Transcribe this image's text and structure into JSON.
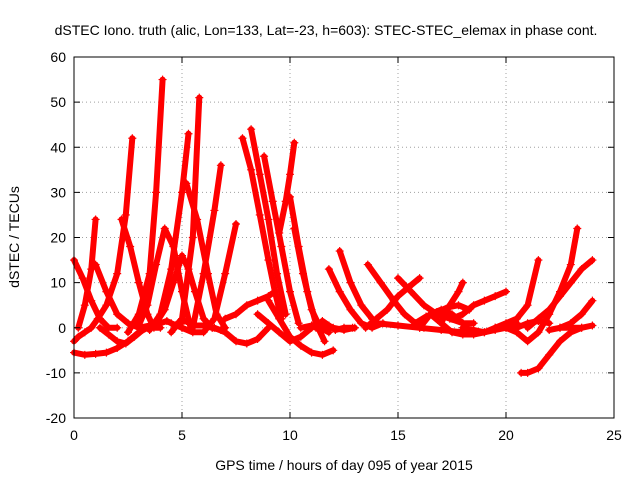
{
  "chart_data": {
    "type": "scatter",
    "title": "dSTEC Iono. truth (alic, Lon=133, Lat=-23, h=603): STEC-STEC_elemax in phase cont.",
    "xlabel": "GPS time / hours of day 095 of year 2015",
    "ylabel": "dSTEC  / TECUs",
    "xlim": [
      0,
      25
    ],
    "ylim": [
      -20,
      60
    ],
    "x_ticks": [
      0,
      5,
      10,
      15,
      20,
      25
    ],
    "y_ticks": [
      -20,
      -10,
      0,
      10,
      20,
      30,
      40,
      50,
      60
    ],
    "x_tick_labels": [
      "0",
      "5",
      "10",
      "15",
      "20",
      "25"
    ],
    "y_tick_labels": [
      "-20",
      "-10",
      "0",
      "10",
      "20",
      "30",
      "40",
      "50",
      "60"
    ],
    "grid": true,
    "marker": "+",
    "series_color": "#ff0000",
    "series": [
      {
        "x": [
          0.0,
          0.2,
          0.5,
          0.8,
          1.1,
          1.5,
          2.0,
          2.4,
          2.7
        ],
        "y": [
          -3,
          -2,
          -1,
          0,
          2,
          5,
          12,
          25,
          42
        ]
      },
      {
        "x": [
          0.0,
          0.4,
          0.8,
          1.2,
          1.6,
          2.0
        ],
        "y": [
          15,
          11,
          6,
          2,
          0,
          0
        ]
      },
      {
        "x": [
          0.0,
          0.5,
          1.0,
          1.5,
          2.0,
          2.5,
          3.0,
          3.4
        ],
        "y": [
          -5.5,
          -6,
          -5.8,
          -5.5,
          -4.5,
          -3,
          -1,
          0
        ]
      },
      {
        "x": [
          0.2,
          0.5,
          0.8,
          1.0
        ],
        "y": [
          0,
          5,
          13,
          24
        ]
      },
      {
        "x": [
          1.0,
          1.5,
          2.0,
          2.5,
          3.0,
          3.5,
          4.0,
          4.3,
          4.5,
          5.0
        ],
        "y": [
          14,
          8,
          3,
          1,
          0,
          0.5,
          1,
          1.5,
          1,
          0
        ]
      },
      {
        "x": [
          1.2,
          1.6,
          2.0,
          2.4,
          2.8,
          3.3,
          4.0
        ],
        "y": [
          0,
          -1.5,
          -3,
          -3.5,
          -2,
          0,
          1
        ]
      },
      {
        "x": [
          2.2,
          2.6,
          3.0,
          3.4,
          3.7,
          4.0
        ],
        "y": [
          24,
          18,
          10,
          3,
          0,
          0
        ]
      },
      {
        "x": [
          2.5,
          3.0,
          3.5,
          3.8,
          4.1
        ],
        "y": [
          -1,
          3,
          12,
          30,
          55
        ]
      },
      {
        "x": [
          3.0,
          3.4,
          3.8,
          4.2,
          4.6,
          5.0,
          5.4
        ],
        "y": [
          0.5,
          5,
          14,
          22,
          18,
          8,
          0
        ]
      },
      {
        "x": [
          3.5,
          4.0,
          4.5,
          5.0,
          5.3
        ],
        "y": [
          -0.5,
          3,
          13,
          30,
          43
        ]
      },
      {
        "x": [
          3.8,
          4.2,
          4.6,
          5.0,
          5.3,
          5.6,
          6.0,
          6.4
        ],
        "y": [
          1,
          4,
          10,
          16,
          13,
          8,
          2,
          0
        ]
      },
      {
        "x": [
          4.5,
          5.0,
          5.5,
          5.8
        ],
        "y": [
          -1,
          2,
          20,
          51
        ]
      },
      {
        "x": [
          5.2,
          5.7,
          6.2,
          6.6,
          7.0
        ],
        "y": [
          32,
          24,
          12,
          3,
          0
        ]
      },
      {
        "x": [
          5.5,
          6.0,
          6.5,
          6.8
        ],
        "y": [
          0,
          12,
          26,
          36
        ]
      },
      {
        "x": [
          5.0,
          5.5,
          6.0,
          6.5,
          7.0,
          7.5
        ],
        "y": [
          0,
          -1,
          -1,
          2,
          12,
          23
        ]
      },
      {
        "x": [
          4.8,
          5.2,
          5.6,
          6.0,
          6.4,
          6.8
        ],
        "y": [
          1,
          1.5,
          0.5,
          0.5,
          0,
          -0.5
        ]
      },
      {
        "x": [
          7.8,
          8.2,
          8.6,
          9.0,
          9.3,
          9.6
        ],
        "y": [
          42,
          35,
          25,
          15,
          8,
          2
        ]
      },
      {
        "x": [
          8.2,
          8.6,
          9.0,
          9.4,
          9.8
        ],
        "y": [
          44,
          34,
          24,
          12,
          3
        ]
      },
      {
        "x": [
          8.8,
          9.2,
          9.6,
          10.0,
          10.4
        ],
        "y": [
          38,
          28,
          18,
          8,
          1
        ]
      },
      {
        "x": [
          9.5,
          9.8,
          10.0,
          10.2
        ],
        "y": [
          21,
          28,
          34,
          41
        ]
      },
      {
        "x": [
          10.0,
          10.4,
          10.8,
          11.2,
          11.6
        ],
        "y": [
          29,
          18,
          8,
          1,
          -3
        ]
      },
      {
        "x": [
          10.2,
          10.6,
          11.0,
          11.4,
          11.8
        ],
        "y": [
          22,
          12,
          4,
          0,
          -1
        ]
      },
      {
        "x": [
          6.5,
          7.0,
          7.5,
          8.0,
          8.5,
          9.0
        ],
        "y": [
          0,
          -1,
          -3,
          -3.5,
          -2.5,
          0
        ]
      },
      {
        "x": [
          7.0,
          7.5,
          8.0,
          8.5,
          9.0,
          9.3
        ],
        "y": [
          2,
          3,
          5,
          6,
          7,
          8
        ]
      },
      {
        "x": [
          9.0,
          9.5,
          10.0,
          10.5,
          11.0,
          11.5,
          12.0
        ],
        "y": [
          6,
          2,
          -2,
          -4,
          -5.5,
          -6,
          -5
        ]
      },
      {
        "x": [
          8.5,
          9.0,
          9.5,
          10.0,
          10.5,
          11.0
        ],
        "y": [
          3,
          1,
          -1,
          -3,
          -2,
          0
        ]
      },
      {
        "x": [
          10.5,
          11.0,
          11.5,
          12.0,
          12.5,
          13.0
        ],
        "y": [
          0,
          0.5,
          1,
          0,
          -0.5,
          0
        ]
      },
      {
        "x": [
          11.2,
          11.5,
          11.8,
          12.1,
          12.5,
          12.9
        ],
        "y": [
          0,
          1.5,
          0.5,
          -0.5,
          0,
          0
        ]
      },
      {
        "x": [
          12.3,
          12.8,
          13.3,
          13.8
        ],
        "y": [
          17,
          10,
          5,
          2
        ]
      },
      {
        "x": [
          11.8,
          12.3,
          12.8,
          13.3,
          13.8,
          14.3
        ],
        "y": [
          13,
          8,
          4,
          1,
          0,
          1
        ]
      },
      {
        "x": [
          13.6,
          14.2,
          14.8,
          15.3,
          15.8,
          16.2
        ],
        "y": [
          14,
          10,
          6,
          3,
          1,
          0
        ]
      },
      {
        "x": [
          13.5,
          14.0,
          14.5,
          15.0,
          15.5,
          16.0
        ],
        "y": [
          0,
          2,
          4,
          7,
          9,
          11
        ]
      },
      {
        "x": [
          14.0,
          15.0,
          16.0,
          17.0,
          18.0
        ],
        "y": [
          1,
          0.5,
          0,
          -0.5,
          -1
        ]
      },
      {
        "x": [
          15.0,
          15.6,
          16.2,
          16.8,
          17.4,
          18.0,
          18.5
        ],
        "y": [
          11,
          8,
          5,
          3,
          2,
          1,
          1
        ]
      },
      {
        "x": [
          15.8,
          16.3,
          16.8,
          17.3,
          17.8,
          18.3
        ],
        "y": [
          1,
          2.5,
          3.5,
          4.5,
          5,
          4
        ]
      },
      {
        "x": [
          16.0,
          16.5,
          17.0,
          17.5,
          18.0
        ],
        "y": [
          0,
          3,
          4,
          3,
          1
        ]
      },
      {
        "x": [
          17.0,
          17.4,
          17.8,
          18.0
        ],
        "y": [
          1,
          5,
          8,
          10
        ]
      },
      {
        "x": [
          17.5,
          18.0,
          18.5,
          19.0,
          19.5,
          20.0
        ],
        "y": [
          2,
          3,
          5,
          6,
          7,
          8
        ]
      },
      {
        "x": [
          16.5,
          17.0,
          17.5,
          18.0,
          18.5,
          19.0,
          19.5
        ],
        "y": [
          3,
          1,
          -1,
          -1.5,
          -1.5,
          -1,
          0
        ]
      },
      {
        "x": [
          18.0,
          18.5,
          19.0,
          19.5,
          20.0,
          20.5
        ],
        "y": [
          0,
          -0.5,
          -1,
          -0.5,
          0,
          1
        ]
      },
      {
        "x": [
          19.5,
          20.0,
          20.5,
          21.0,
          21.5
        ],
        "y": [
          0,
          1,
          2,
          5,
          15
        ]
      },
      {
        "x": [
          20.0,
          20.5,
          21.0,
          21.5,
          22.0,
          22.5,
          23.0,
          23.3
        ],
        "y": [
          0,
          -1,
          -3,
          -1,
          3,
          8,
          14,
          22
        ]
      },
      {
        "x": [
          20.7,
          21.0,
          21.5,
          22.0,
          22.5,
          23.0,
          23.5
        ],
        "y": [
          -10,
          -10,
          -9,
          -6,
          -3,
          -1,
          0
        ]
      },
      {
        "x": [
          21.0,
          21.5,
          22.0,
          22.5,
          23.0,
          23.5,
          24.0
        ],
        "y": [
          0,
          2,
          4,
          7,
          10,
          13,
          15
        ]
      },
      {
        "x": [
          22.0,
          22.5,
          23.0,
          23.5,
          24.0
        ],
        "y": [
          -0.5,
          0,
          1,
          3,
          6
        ]
      },
      {
        "x": [
          20.5,
          21.0,
          21.5,
          22.0
        ],
        "y": [
          0,
          1,
          1.5,
          1
        ]
      },
      {
        "x": [
          22.5,
          23.0,
          23.5,
          24.0
        ],
        "y": [
          0,
          0,
          0,
          0.5
        ]
      }
    ]
  }
}
